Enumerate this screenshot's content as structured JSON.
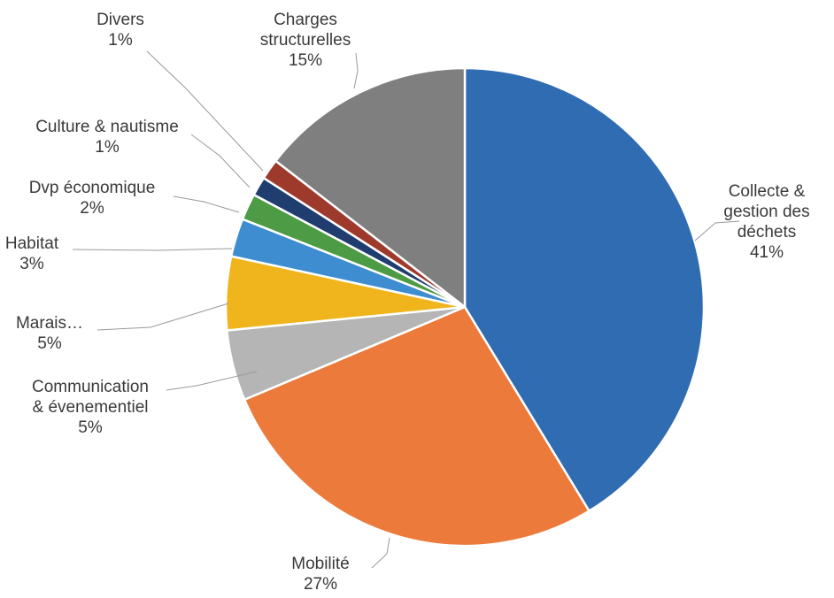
{
  "chart_data": {
    "type": "pie",
    "title": "",
    "start_angle_deg": 0,
    "direction": "clockwise",
    "slices": [
      {
        "label_lines": [
          "Collecte &",
          "gestion des",
          "déchets"
        ],
        "percent_label": "41%",
        "value": 41.5,
        "color": "#2f6cb2"
      },
      {
        "label_lines": [
          "Mobilité"
        ],
        "percent_label": "27%",
        "value": 27.5,
        "color": "#ec7a3b"
      },
      {
        "label_lines": [
          "Communication",
          "& évenementiel"
        ],
        "percent_label": "5%",
        "value": 4.8,
        "color": "#b5b5b5"
      },
      {
        "label_lines": [
          "Marais…"
        ],
        "percent_label": "5%",
        "value": 5.0,
        "color": "#f0b41d"
      },
      {
        "label_lines": [
          "Habitat"
        ],
        "percent_label": "3%",
        "value": 2.6,
        "color": "#3e8dd0"
      },
      {
        "label_lines": [
          "Dvp économique"
        ],
        "percent_label": "2%",
        "value": 1.8,
        "color": "#4d9b44"
      },
      {
        "label_lines": [
          "Culture & nautisme"
        ],
        "percent_label": "1%",
        "value": 1.3,
        "color": "#1f3d6e"
      },
      {
        "label_lines": [
          "Divers"
        ],
        "percent_label": "1%",
        "value": 1.4,
        "color": "#9e3a2c"
      },
      {
        "label_lines": [
          "Charges",
          "structurelles"
        ],
        "percent_label": "15%",
        "value": 14.6,
        "color": "#7f7f7f"
      }
    ]
  }
}
